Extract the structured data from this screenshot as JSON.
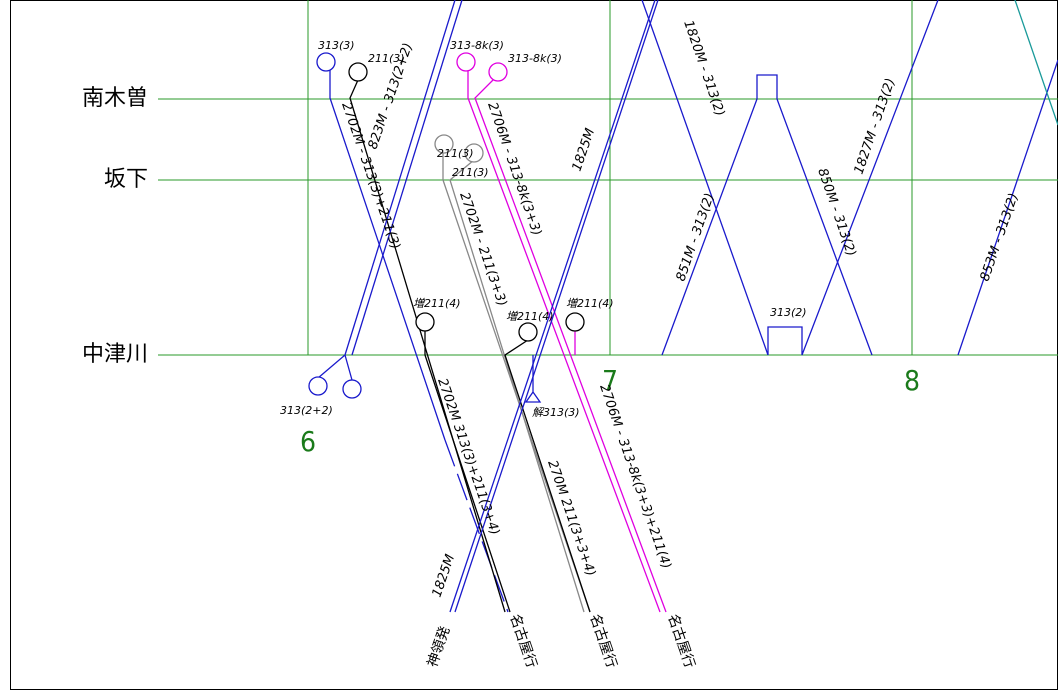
{
  "stations": [
    "南木曽",
    "坂下",
    "中津川"
  ],
  "hours": [
    "6",
    "7",
    "8"
  ],
  "consist_labels": [
    "313(3)",
    "211(3)",
    "313-8k(3)",
    "313-8k(3)",
    "211(3)",
    "211(3)",
    "増211(4)",
    "増211(4)",
    "増211(4)",
    "313(2+2)",
    "解313(3)",
    "313(2)"
  ],
  "train_labels": [
    "2702M - 313(3)+211(3)",
    "823M - 313(2+2)",
    "2706M - 313-8k(3+3)",
    "1825M",
    "1820M - 313(2)",
    "851M - 313(2)",
    "850M - 313(2)",
    "1827M - 313(2)",
    "853M - 313(2)",
    "2702M - 211(3+3)",
    "2702M 313(3)+211(3+4)",
    "270M 211(3+3+4)",
    "2706M - 313-8k(3+3)+211(4)",
    "1825M"
  ],
  "destination_labels": [
    "神領発",
    "名古屋行",
    "名古屋行",
    "名古屋行"
  ]
}
